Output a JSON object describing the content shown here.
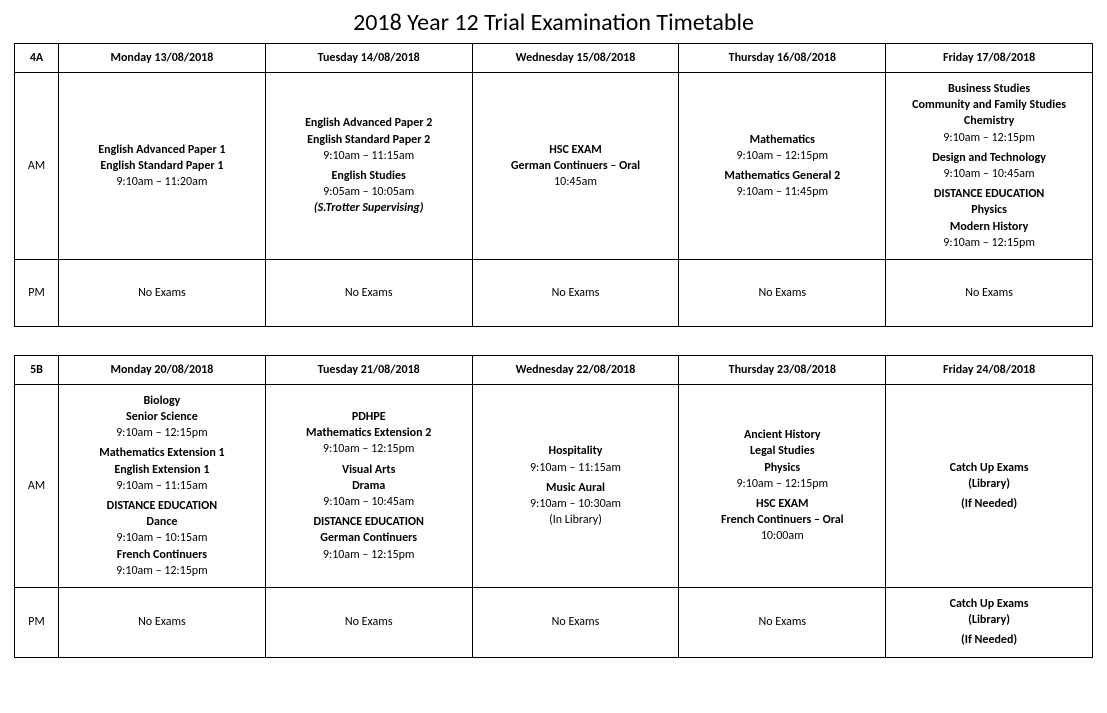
{
  "title": "2018 Year 12 Trial Examination Timetable",
  "weeks": [
    {
      "code": "4A",
      "days": [
        "Monday 13/08/2018",
        "Tuesday 14/08/2018",
        "Wednesday 15/08/2018",
        "Thursday 16/08/2018",
        "Friday 17/08/2018"
      ],
      "am_label": "AM",
      "pm_label": "PM",
      "am": [
        [
          {
            "lines": [
              {
                "t": "English Advanced Paper 1",
                "b": true
              },
              {
                "t": "English Standard Paper 1",
                "b": true
              },
              {
                "t": "9:10am – 11:20am"
              }
            ]
          }
        ],
        [
          {
            "lines": [
              {
                "t": "English Advanced Paper 2",
                "b": true
              },
              {
                "t": "English Standard Paper 2",
                "b": true
              },
              {
                "t": "9:10am – 11:15am"
              }
            ]
          },
          {
            "lines": [
              {
                "t": "English Studies",
                "b": true
              },
              {
                "t": "9:05am – 10:05am"
              },
              {
                "t": "(S.Trotter Supervising)",
                "b": true,
                "i": true
              }
            ]
          }
        ],
        [
          {
            "lines": [
              {
                "t": "HSC EXAM",
                "b": true
              },
              {
                "t": "German Continuers – Oral",
                "b": true
              },
              {
                "t": "10:45am"
              }
            ]
          }
        ],
        [
          {
            "lines": [
              {
                "t": "Mathematics",
                "b": true
              },
              {
                "t": "9:10am – 12:15pm"
              }
            ]
          },
          {
            "lines": [
              {
                "t": "Mathematics General 2",
                "b": true
              },
              {
                "t": "9:10am – 11:45pm"
              }
            ]
          }
        ],
        [
          {
            "lines": [
              {
                "t": "Business Studies",
                "b": true
              },
              {
                "t": "Community and Family Studies",
                "b": true
              },
              {
                "t": "Chemistry",
                "b": true
              },
              {
                "t": "9:10am – 12:15pm"
              }
            ]
          },
          {
            "lines": [
              {
                "t": "Design and Technology",
                "b": true
              },
              {
                "t": "9:10am – 10:45am"
              }
            ]
          },
          {
            "lines": [
              {
                "t": "DISTANCE EDUCATION",
                "b": true
              },
              {
                "t": "Physics",
                "b": true
              },
              {
                "t": "Modern History",
                "b": true
              },
              {
                "t": "9:10am – 12:15pm"
              }
            ]
          }
        ]
      ],
      "pm": [
        [
          {
            "lines": [
              {
                "t": "No Exams"
              }
            ]
          }
        ],
        [
          {
            "lines": [
              {
                "t": "No Exams"
              }
            ]
          }
        ],
        [
          {
            "lines": [
              {
                "t": "No Exams"
              }
            ]
          }
        ],
        [
          {
            "lines": [
              {
                "t": "No Exams"
              }
            ]
          }
        ],
        [
          {
            "lines": [
              {
                "t": "No Exams"
              }
            ]
          }
        ]
      ]
    },
    {
      "code": "5B",
      "days": [
        "Monday 20/08/2018",
        "Tuesday 21/08/2018",
        "Wednesday 22/08/2018",
        "Thursday 23/08/2018",
        "Friday 24/08/2018"
      ],
      "am_label": "AM",
      "pm_label": "PM",
      "am": [
        [
          {
            "lines": [
              {
                "t": "Biology",
                "b": true
              },
              {
                "t": "Senior Science",
                "b": true
              },
              {
                "t": "9:10am – 12:15pm"
              }
            ]
          },
          {
            "lines": [
              {
                "t": "Mathematics Extension 1",
                "b": true
              },
              {
                "t": "English Extension 1",
                "b": true
              },
              {
                "t": "9:10am – 11:15am"
              }
            ]
          },
          {
            "lines": [
              {
                "t": "DISTANCE EDUCATION",
                "b": true
              },
              {
                "t": "Dance",
                "b": true
              },
              {
                "t": "9:10am – 10:15am"
              },
              {
                "t": "French Continuers",
                "b": true
              },
              {
                "t": "9:10am – 12:15pm"
              }
            ]
          }
        ],
        [
          {
            "lines": [
              {
                "t": "PDHPE",
                "b": true
              },
              {
                "t": "Mathematics Extension 2",
                "b": true
              },
              {
                "t": "9:10am – 12:15pm"
              }
            ]
          },
          {
            "lines": [
              {
                "t": "Visual Arts",
                "b": true
              },
              {
                "t": "Drama",
                "b": true
              },
              {
                "t": "9:10am – 10:45am"
              }
            ]
          },
          {
            "lines": [
              {
                "t": "DISTANCE EDUCATION",
                "b": true
              },
              {
                "t": "German Continuers",
                "b": true
              },
              {
                "t": "9:10am – 12:15pm"
              }
            ]
          }
        ],
        [
          {
            "lines": [
              {
                "t": "Hospitality",
                "b": true
              },
              {
                "t": "9:10am – 11:15am"
              }
            ]
          },
          {
            "lines": [
              {
                "t": "Music Aural",
                "b": true
              },
              {
                "t": "9:10am – 10:30am"
              },
              {
                "t": "(In Library)"
              }
            ]
          }
        ],
        [
          {
            "lines": [
              {
                "t": "Ancient History",
                "b": true
              },
              {
                "t": "Legal Studies",
                "b": true
              },
              {
                "t": "Physics",
                "b": true
              },
              {
                "t": "9:10am – 12:15pm"
              }
            ]
          },
          {
            "lines": [
              {
                "t": "HSC EXAM",
                "b": true
              },
              {
                "t": "French Continuers – Oral",
                "b": true
              },
              {
                "t": "10:00am"
              }
            ]
          }
        ],
        [
          {
            "lines": [
              {
                "t": "Catch Up Exams",
                "b": true
              },
              {
                "t": "(Library)",
                "b": true
              }
            ]
          },
          {
            "lines": [
              {
                "t": "(If Needed)",
                "b": true
              }
            ]
          }
        ]
      ],
      "pm": [
        [
          {
            "lines": [
              {
                "t": "No Exams"
              }
            ]
          }
        ],
        [
          {
            "lines": [
              {
                "t": "No Exams"
              }
            ]
          }
        ],
        [
          {
            "lines": [
              {
                "t": "No Exams"
              }
            ]
          }
        ],
        [
          {
            "lines": [
              {
                "t": "No Exams"
              }
            ]
          }
        ],
        [
          {
            "lines": [
              {
                "t": "Catch Up Exams",
                "b": true
              },
              {
                "t": "(Library)",
                "b": true
              }
            ]
          },
          {
            "lines": [
              {
                "t": "(If Needed)",
                "b": true
              }
            ]
          }
        ]
      ]
    }
  ]
}
